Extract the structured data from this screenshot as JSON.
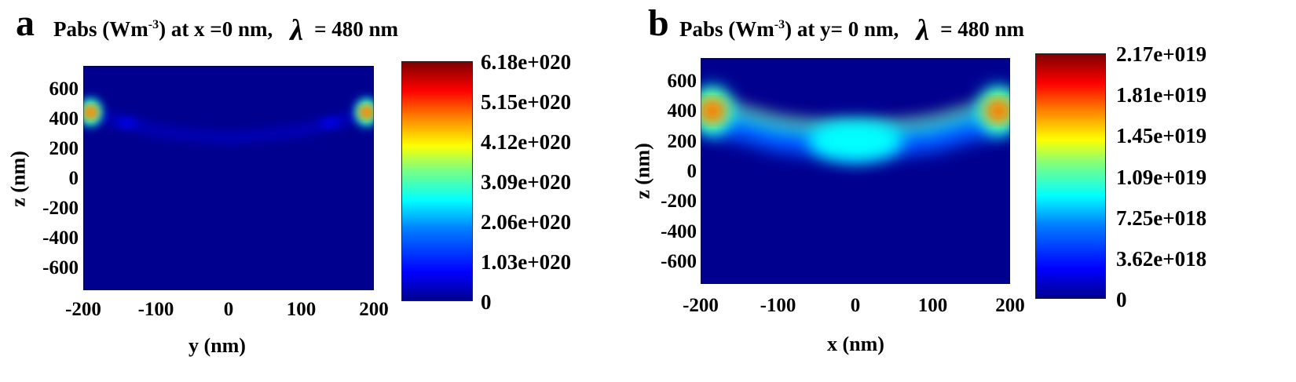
{
  "chart_data": [
    {
      "panel": "a",
      "type": "heatmap",
      "title_prefix": "Pabs (Wm",
      "title_sup": "-3",
      "title_suffix": ")  at x =0 nm,",
      "lambda_symbol": "λ",
      "lambda_value": "= 480 nm",
      "xlabel": "y (nm)",
      "ylabel": "z (nm)",
      "xlim": [
        -200,
        200
      ],
      "ylim": [
        -750,
        750
      ],
      "xticks": [
        "-200",
        "-100",
        "0",
        "100",
        "200"
      ],
      "yticks": [
        "600",
        "400",
        "200",
        "0",
        "-200",
        "-400",
        "-600"
      ],
      "colorbar_labels": [
        "6.18e+020",
        "5.15e+020",
        "4.12e+020",
        "3.09e+020",
        "2.06e+020",
        "1.03e+020",
        "0"
      ],
      "colorbar_range": [
        0,
        6.18e+20
      ],
      "surface_profile": {
        "x": [
          -200,
          -100,
          0,
          100,
          200
        ],
        "z": [
          470,
          340,
          290,
          340,
          470
        ]
      },
      "hotspots": [
        {
          "x": -190,
          "z": 440,
          "value": 6.18e+20
        },
        {
          "x": 190,
          "z": 440,
          "value": 6.18e+20
        },
        {
          "x": -140,
          "z": 370,
          "value": 1.03e+20
        },
        {
          "x": 140,
          "z": 370,
          "value": 1.03e+20
        }
      ]
    },
    {
      "panel": "b",
      "type": "heatmap",
      "title_prefix": "Pabs (Wm",
      "title_sup": "-3",
      "title_suffix": ")  at y= 0 nm,",
      "lambda_symbol": "λ",
      "lambda_value": "= 480 nm",
      "xlabel": "x (nm)",
      "ylabel": "z (nm)",
      "xlim": [
        -200,
        200
      ],
      "ylim": [
        -750,
        750
      ],
      "xticks": [
        "-200",
        "-100",
        "0",
        "100",
        "200"
      ],
      "yticks": [
        "600",
        "400",
        "200",
        "0",
        "-200",
        "-400",
        "-600"
      ],
      "colorbar_labels": [
        "2.17e+019",
        "1.81e+019",
        "1.45e+019",
        "1.09e+019",
        "7.25e+018",
        "3.62e+018",
        "0"
      ],
      "colorbar_range": [
        0,
        2.17e+19
      ],
      "surface_profile": {
        "x": [
          -200,
          -100,
          0,
          100,
          200
        ],
        "z": [
          480,
          340,
          290,
          340,
          480
        ]
      },
      "hotspots": [
        {
          "x": -185,
          "z": 400,
          "value": 2.17e+19
        },
        {
          "x": 185,
          "z": 400,
          "value": 2.17e+19
        },
        {
          "x": 0,
          "z": 200,
          "value": 7.25e+18
        }
      ]
    }
  ]
}
